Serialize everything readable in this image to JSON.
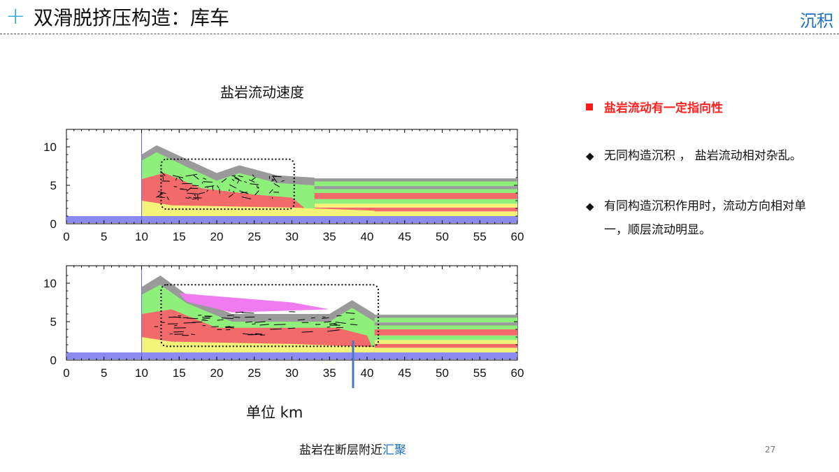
{
  "header": {
    "plus_icon": "+",
    "title": "双滑脱挤压构造：库车",
    "section": "沉积"
  },
  "figure": {
    "title": "盐岩流动速度",
    "unit_label": "单位 km",
    "bottom_note_prefix": "盐岩在断层附近",
    "bottom_note_highlight": "汇聚",
    "x_ticks": [
      "0",
      "5",
      "10",
      "15",
      "20",
      "25",
      "30",
      "35",
      "40",
      "45",
      "50",
      "55",
      "60"
    ],
    "y_ticks": [
      "0",
      "5",
      "10"
    ],
    "colors": {
      "green": "#8ef07a",
      "gray": "#9a9a9a",
      "red": "#f26a6a",
      "yellow": "#f3f37a",
      "blue": "#8a8af0",
      "magenta": "#f07af0",
      "arrow": "#4a78c8"
    }
  },
  "right_panel": {
    "heading": "盐岩流动有一定指向性",
    "items": [
      "无同构造沉积 ， 盐岩流动相对杂乱。",
      "有同构造沉积作用时，流动方向相对单一，顺层流动明显。"
    ],
    "diamond_icon": "◆"
  },
  "page_number": "27"
}
